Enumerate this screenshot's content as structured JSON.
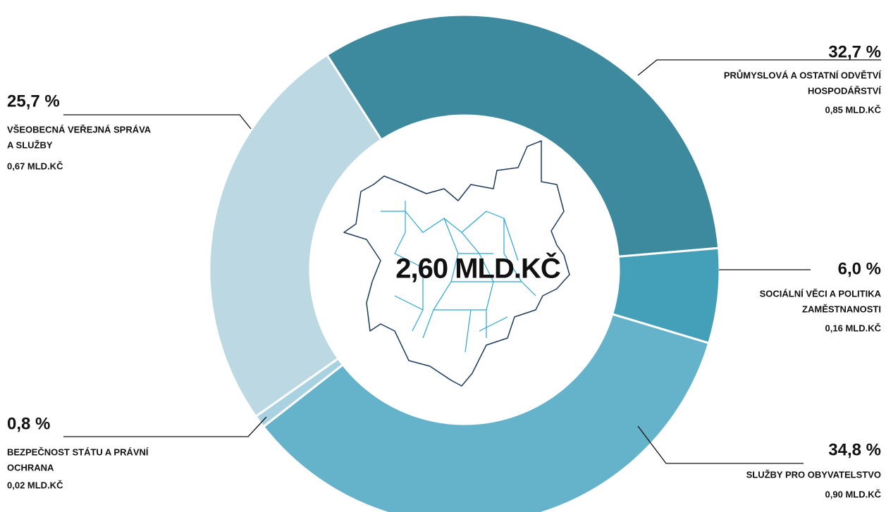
{
  "chart_data": {
    "type": "donut",
    "center_label": "2,60 MLD.KČ",
    "categories": [
      [
        "PRŮMYSLOVÁ A OSTATNÍ ODVĚTVÍ",
        "HOSPODÁŘSTVÍ"
      ],
      [
        "SOCIÁLNÍ VĚCI A POLITIKA",
        "ZAMĚSTNANOSTI"
      ],
      [
        "SLUŽBY PRO OBYVATELSTVO"
      ],
      [
        "BEZPEČNOST STÁTU A PRÁVNÍ",
        "OCHRANA"
      ],
      [
        "VŠEOBECNÁ VEŘEJNÁ SPRÁVA",
        "A SLUŽBY"
      ]
    ],
    "values": [
      32.7,
      6.0,
      34.8,
      0.8,
      25.7
    ],
    "value_labels": [
      "32,7 %",
      "6,0 %",
      "34,8 %",
      "0,8 %",
      "25,7 %"
    ],
    "amount_labels": [
      "0,85 MLD.KČ",
      "0,16 MLD.KČ",
      "0,90 MLD.KČ",
      "0,02 MLD.KČ",
      "0,67 MLD.KČ"
    ],
    "colors": [
      "#3d8a9e",
      "#449fb8",
      "#65b2cb",
      "#a9d2e0",
      "#bcd9e3"
    ]
  }
}
